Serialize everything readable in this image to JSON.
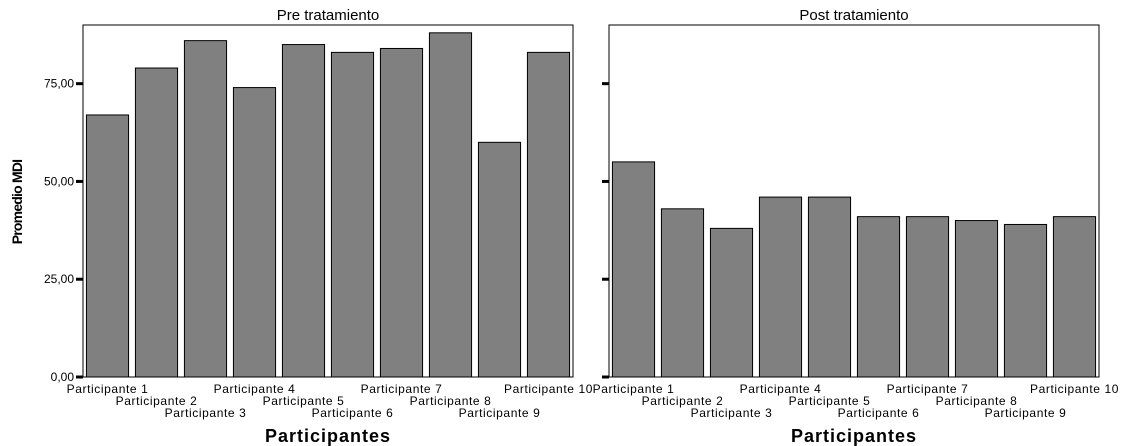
{
  "chart_data": [
    {
      "type": "bar",
      "title": "Pre tratamiento",
      "xlabel": "Participantes",
      "ylabel": "Promedio MDI",
      "ylim": [
        0,
        90
      ],
      "yticks": [
        0,
        25,
        50,
        75
      ],
      "ytick_labels": [
        "0,00",
        "25,00",
        "50,00",
        "75,00"
      ],
      "categories": [
        "Participante 1",
        "Participante 2",
        "Participante 3",
        "Participante 4",
        "Participante 5",
        "Participante 6",
        "Participante 7",
        "Participante 8",
        "Participante 9",
        "Participante 10"
      ],
      "values": [
        67,
        79,
        86,
        74,
        85,
        83,
        84,
        88,
        60,
        83
      ],
      "bar_color": "#808080"
    },
    {
      "type": "bar",
      "title": "Post tratamiento",
      "xlabel": "Participantes",
      "ylabel": "",
      "ylim": [
        0,
        90
      ],
      "yticks": [
        0,
        25,
        50,
        75
      ],
      "ytick_labels": [
        "",
        "",
        "",
        ""
      ],
      "categories": [
        "Participante 1",
        "Participante 2",
        "Participante 3",
        "Participante 4",
        "Participante 5",
        "Participante 6",
        "Participante 7",
        "Participante 8",
        "Participante 9",
        "Participante 10"
      ],
      "values": [
        55,
        43,
        38,
        46,
        46,
        41,
        41,
        40,
        39,
        41
      ],
      "bar_color": "#808080"
    }
  ]
}
